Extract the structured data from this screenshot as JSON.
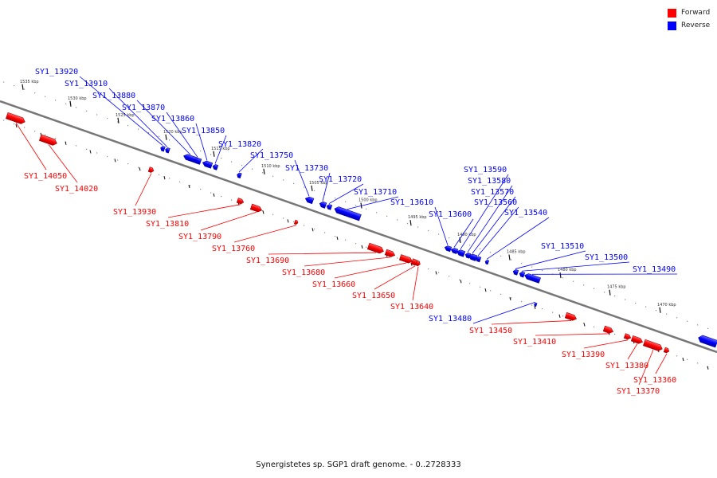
{
  "legend": [
    {
      "label": "Forward",
      "color": "#ff0000"
    },
    {
      "label": "Reverse",
      "color": "#0000ff"
    }
  ],
  "caption": "Synergistetes sp. SGP1 draft genome. - 0..2728333",
  "colors": {
    "forward": "#ff0000",
    "reverse": "#0000ff",
    "backbone": "#777777"
  },
  "ticks": [
    "1535 kbp",
    "1530 kbp",
    "1525 kbp",
    "1520 kbp",
    "1515 kbp",
    "1510 kbp",
    "1505 kbp",
    "1500 kbp",
    "1495 kbp",
    "1490 kbp",
    "1485 kbp",
    "1480 kbp",
    "1475 kbp",
    "1470 kbp"
  ],
  "genes": [
    {
      "id": "SY1_14050",
      "strand": "forward"
    },
    {
      "id": "SY1_14020",
      "strand": "forward"
    },
    {
      "id": "SY1_13930",
      "strand": "forward"
    },
    {
      "id": "SY1_13920",
      "strand": "reverse"
    },
    {
      "id": "SY1_13910",
      "strand": "reverse"
    },
    {
      "id": "SY1_13880",
      "strand": "reverse"
    },
    {
      "id": "SY1_13870",
      "strand": "reverse"
    },
    {
      "id": "SY1_13860",
      "strand": "reverse"
    },
    {
      "id": "SY1_13850",
      "strand": "reverse"
    },
    {
      "id": "SY1_13820",
      "strand": "reverse"
    },
    {
      "id": "SY1_13810",
      "strand": "forward"
    },
    {
      "id": "SY1_13790",
      "strand": "forward"
    },
    {
      "id": "SY1_13760",
      "strand": "forward"
    },
    {
      "id": "SY1_13750",
      "strand": "reverse"
    },
    {
      "id": "SY1_13730",
      "strand": "reverse"
    },
    {
      "id": "SY1_13720",
      "strand": "reverse"
    },
    {
      "id": "SY1_13710",
      "strand": "reverse"
    },
    {
      "id": "SY1_13690",
      "strand": "forward"
    },
    {
      "id": "SY1_13680",
      "strand": "forward"
    },
    {
      "id": "SY1_13660",
      "strand": "forward"
    },
    {
      "id": "SY1_13650",
      "strand": "forward"
    },
    {
      "id": "SY1_13640",
      "strand": "forward"
    },
    {
      "id": "SY1_13610",
      "strand": "reverse"
    },
    {
      "id": "SY1_13600",
      "strand": "reverse"
    },
    {
      "id": "SY1_13590",
      "strand": "reverse"
    },
    {
      "id": "SY1_13580",
      "strand": "reverse"
    },
    {
      "id": "SY1_13570",
      "strand": "reverse"
    },
    {
      "id": "SY1_13560",
      "strand": "reverse"
    },
    {
      "id": "SY1_13540",
      "strand": "reverse"
    },
    {
      "id": "SY1_13510",
      "strand": "reverse"
    },
    {
      "id": "SY1_13500",
      "strand": "reverse"
    },
    {
      "id": "SY1_13490",
      "strand": "reverse"
    },
    {
      "id": "SY1_13480",
      "strand": "reverse"
    },
    {
      "id": "SY1_13450",
      "strand": "forward"
    },
    {
      "id": "SY1_13410",
      "strand": "forward"
    },
    {
      "id": "SY1_13390",
      "strand": "forward"
    },
    {
      "id": "SY1_13380",
      "strand": "forward"
    },
    {
      "id": "SY1_13370",
      "strand": "forward"
    },
    {
      "id": "SY1_13360",
      "strand": "forward"
    }
  ]
}
